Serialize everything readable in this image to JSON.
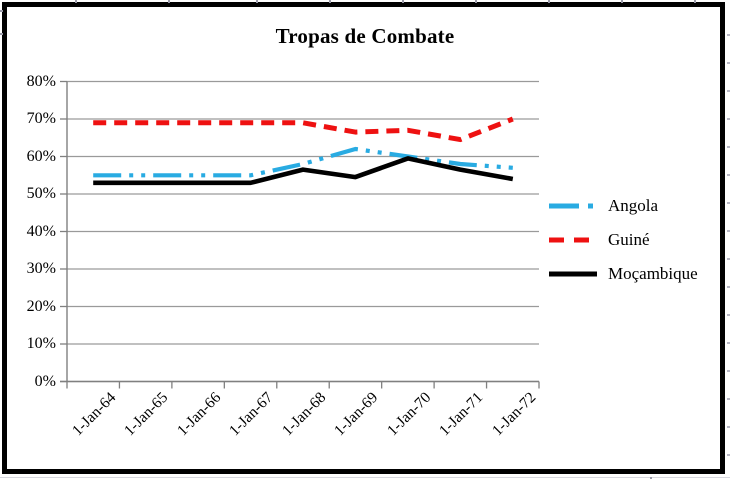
{
  "chart_data": {
    "type": "line",
    "title": "Tropas de Combate",
    "categories": [
      "1-Jan-64",
      "1-Jan-65",
      "1-Jan-66",
      "1-Jan-67",
      "1-Jan-68",
      "1-Jan-69",
      "1-Jan-70",
      "1-Jan-71",
      "1-Jan-72"
    ],
    "series": [
      {
        "name": "Angola",
        "color": "#29ABE2",
        "line_style": "dash-dot",
        "values": [
          55,
          55,
          55,
          55,
          58,
          62,
          60,
          58,
          57
        ]
      },
      {
        "name": "Guiné",
        "color": "#EE1111",
        "line_style": "dashed",
        "values": [
          69,
          69,
          69,
          69,
          69,
          66.5,
          67,
          64.5,
          70
        ]
      },
      {
        "name": "Moçambique",
        "color": "#000000",
        "line_style": "solid",
        "values": [
          53,
          53,
          53,
          53,
          56.5,
          54.5,
          59.5,
          56.5,
          54
        ]
      }
    ],
    "y_ticks": [
      "80%",
      "70%",
      "60%",
      "50%",
      "40%",
      "30%",
      "20%",
      "10%",
      "0%"
    ],
    "ylim": [
      0,
      80
    ],
    "grid": true,
    "legend_position": "right",
    "gridline_color": "#9a9a9a",
    "axis_color": "#808080"
  }
}
